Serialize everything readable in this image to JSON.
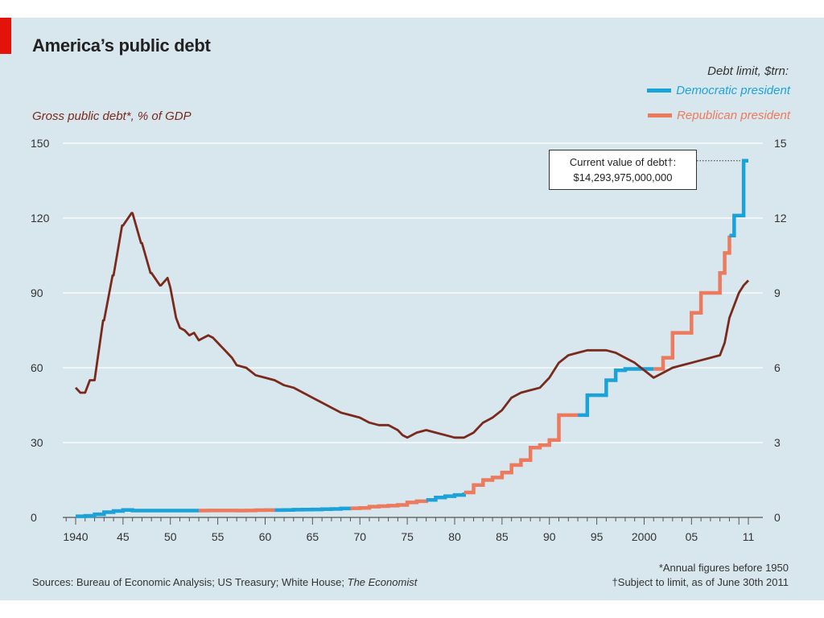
{
  "title": "America’s public debt",
  "left_axis_label": "Gross public debt*, % of GDP",
  "legend": {
    "title": "Debt limit, $trn:",
    "democratic": "Democratic president",
    "republican": "Republican president"
  },
  "annotation": {
    "line1": "Current value of debt†:",
    "line2": "$14,293,975,000,000"
  },
  "footnote1": "*Annual figures before 1950",
  "footnote2": "†Subject to limit, as of June 30th 2011",
  "sources_prefix": "Sources: Bureau of Economic Analysis; US Treasury; White House; ",
  "sources_italic": "The Economist",
  "colors": {
    "debt_line": "#7a2a1c",
    "democratic": "#1ba3d9",
    "republican": "#ee7a5d",
    "background": "#d8e6ed",
    "gridline": "#ffffff"
  },
  "chart_data": {
    "type": "line",
    "title": "America’s public debt",
    "x_ticks": [
      "1940",
      "45",
      "50",
      "55",
      "60",
      "65",
      "70",
      "75",
      "80",
      "85",
      "90",
      "95",
      "2000",
      "05",
      "11"
    ],
    "x_tick_years": [
      1940,
      1945,
      1950,
      1955,
      1960,
      1965,
      1970,
      1975,
      1980,
      1985,
      1990,
      1995,
      2000,
      2005,
      2011
    ],
    "xlim": [
      1939,
      2012
    ],
    "y_left": {
      "label": "Gross public debt*, % of GDP",
      "ticks": [
        0,
        30,
        60,
        90,
        120,
        150
      ],
      "ylim": [
        0,
        150
      ]
    },
    "y_right": {
      "label": "Debt limit, $trn:",
      "ticks": [
        0,
        3,
        6,
        9,
        12,
        15
      ],
      "ylim": [
        0,
        15
      ]
    },
    "grid": true,
    "series": [
      {
        "name": "Gross public debt*, % of GDP",
        "axis": "left",
        "x": [
          1940,
          1940.5,
          1941,
          1941.5,
          1942,
          1942.9,
          1943,
          1943.9,
          1944,
          1944.9,
          1945,
          1945.9,
          1946,
          1946.9,
          1947,
          1947.9,
          1948,
          1948.9,
          1949,
          1949.7,
          1950,
          1950.3,
          1950.6,
          1951,
          1951.5,
          1952,
          1952.5,
          1953,
          1953.5,
          1954,
          1954.5,
          1955,
          1955.5,
          1956,
          1956.5,
          1957,
          1958,
          1959,
          1960,
          1961,
          1962,
          1963,
          1964,
          1965,
          1966,
          1967,
          1968,
          1969,
          1970,
          1971,
          1972,
          1973,
          1974,
          1974.5,
          1975,
          1976,
          1977,
          1978,
          1979,
          1980,
          1981,
          1982,
          1983,
          1984,
          1985,
          1986,
          1987,
          1988,
          1989,
          1990,
          1991,
          1992,
          1993,
          1994,
          1995,
          1996,
          1997,
          1998,
          1999,
          2000,
          2001,
          2002,
          2003,
          2004,
          2005,
          2006,
          2007,
          2008,
          2008.5,
          2009,
          2009.5,
          2010,
          2010.5,
          2011
        ],
        "y": [
          52,
          50,
          50,
          55,
          55,
          79,
          79,
          97,
          97,
          117,
          117,
          122,
          122,
          110,
          110,
          98,
          98,
          93,
          93,
          96,
          92,
          86,
          80,
          76,
          75,
          73,
          74,
          71,
          72,
          73,
          72,
          70,
          68,
          66,
          64,
          61,
          60,
          57,
          56,
          55,
          53,
          52,
          50,
          48,
          46,
          44,
          42,
          41,
          40,
          38,
          37,
          37,
          35,
          33,
          32,
          34,
          35,
          34,
          33,
          32,
          32,
          34,
          38,
          40,
          43,
          48,
          50,
          51,
          52,
          56,
          62,
          65,
          66,
          67,
          67,
          67,
          66,
          64,
          62,
          59,
          56,
          58,
          60,
          61,
          62,
          63,
          64,
          65,
          70,
          80,
          85,
          90,
          93,
          95
        ]
      },
      {
        "name": "Debt limit, $trn",
        "axis": "right",
        "segments": [
          {
            "party": "democratic",
            "x": [
              1940,
              1941,
              1942,
              1943,
              1944,
              1945,
              1946,
              1947,
              1948,
              1949,
              1950,
              1951,
              1952,
              1953
            ],
            "y": [
              0.045,
              0.065,
              0.125,
              0.21,
              0.26,
              0.3,
              0.275,
              0.275,
              0.275,
              0.275,
              0.275,
              0.275,
              0.275,
              0.275
            ]
          },
          {
            "party": "republican",
            "x": [
              1953,
              1954,
              1955,
              1956,
              1957,
              1958,
              1959,
              1960,
              1961
            ],
            "y": [
              0.275,
              0.28,
              0.28,
              0.28,
              0.275,
              0.28,
              0.29,
              0.295,
              0.295
            ]
          },
          {
            "party": "democratic",
            "x": [
              1961,
              1962,
              1963,
              1964,
              1965,
              1966,
              1967,
              1968,
              1969
            ],
            "y": [
              0.295,
              0.3,
              0.31,
              0.315,
              0.32,
              0.33,
              0.34,
              0.36,
              0.365
            ]
          },
          {
            "party": "republican",
            "x": [
              1969,
              1970,
              1971,
              1972,
              1973,
              1974,
              1975,
              1976,
              1977
            ],
            "y": [
              0.365,
              0.38,
              0.43,
              0.45,
              0.47,
              0.5,
              0.6,
              0.65,
              0.7
            ]
          },
          {
            "party": "democratic",
            "x": [
              1977,
              1978,
              1979,
              1980,
              1981
            ],
            "y": [
              0.7,
              0.8,
              0.85,
              0.9,
              1.0
            ]
          },
          {
            "party": "republican",
            "x": [
              1981,
              1982,
              1983,
              1984,
              1985,
              1986,
              1987,
              1988,
              1989,
              1990,
              1991,
              1992,
              1993
            ],
            "y": [
              1.0,
              1.3,
              1.5,
              1.6,
              1.8,
              2.1,
              2.3,
              2.8,
              2.9,
              3.1,
              4.1,
              4.1,
              4.1
            ]
          },
          {
            "party": "democratic",
            "x": [
              1993,
              1994,
              1995,
              1996,
              1997,
              1998,
              1999,
              2000,
              2001
            ],
            "y": [
              4.1,
              4.9,
              4.9,
              5.5,
              5.9,
              5.95,
              5.95,
              5.95,
              5.95
            ]
          },
          {
            "party": "republican",
            "x": [
              2001,
              2002,
              2003,
              2004,
              2005,
              2006,
              2007,
              2008,
              2008.5,
              2009
            ],
            "y": [
              5.95,
              6.4,
              7.4,
              7.4,
              8.2,
              9.0,
              9.0,
              9.8,
              10.6,
              11.3
            ]
          },
          {
            "party": "democratic",
            "x": [
              2009,
              2009.5,
              2010,
              2010.5,
              2011
            ],
            "y": [
              11.3,
              12.1,
              12.1,
              14.3,
              14.3
            ]
          }
        ]
      }
    ]
  }
}
